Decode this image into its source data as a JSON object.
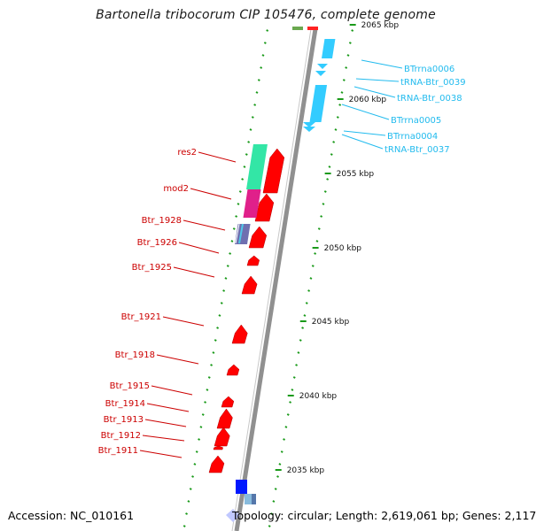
{
  "title": "Bartonella tribocorum CIP 105476, complete genome",
  "footer": {
    "accession": "Accession: NC_010161",
    "stats": "Topology: circular; Length: 2,619,061 bp; Genes: 2,117"
  },
  "colors": {
    "backbone": "#909090",
    "forward_gene": "#ff0000",
    "rna_gene": "#33ccff",
    "tick": "#1a9a1a",
    "label_forward": "#cc0000",
    "label_rna": "#22bbee"
  },
  "scale_labels": [
    "2065 kbp",
    "2060 kbp",
    "2055 kbp",
    "2050 kbp",
    "2045 kbp",
    "2040 kbp",
    "2035 kbp"
  ],
  "rna_labels": [
    "BTrrna0006",
    "tRNA-Btr_0039",
    "tRNA-Btr_0038",
    "BTrrna0005",
    "BTrrna0004",
    "tRNA-Btr_0037"
  ],
  "gene_labels": [
    "res2",
    "mod2",
    "Btr_1928",
    "Btr_1926",
    "Btr_1925",
    "Btr_1921",
    "Btr_1918",
    "Btr_1915",
    "Btr_1914",
    "Btr_1913",
    "Btr_1912",
    "Btr_1911"
  ]
}
